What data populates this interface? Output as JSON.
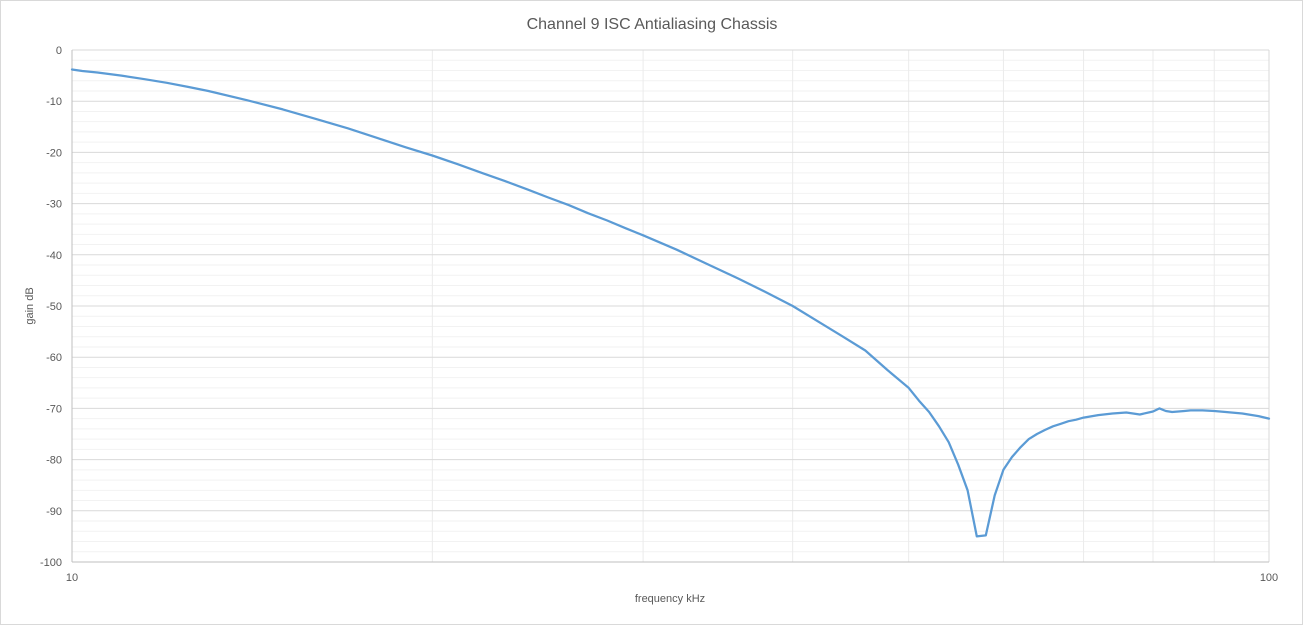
{
  "chart_data": {
    "type": "line",
    "title": "Channel 9 ISC Antialiasing Chassis",
    "xlabel": "frequency kHz",
    "ylabel": "gain dB",
    "x_scale": "log",
    "xlim": [
      10,
      100
    ],
    "ylim": [
      -100,
      0
    ],
    "x_major_ticks": [
      10,
      100
    ],
    "y_major_ticks": [
      0,
      -10,
      -20,
      -30,
      -40,
      -50,
      -60,
      -70,
      -80,
      -90,
      -100
    ],
    "grid": true,
    "legend": "none",
    "series": [
      {
        "color": "#5B9BD5",
        "x": [
          10,
          10.2,
          10.5,
          11,
          11.5,
          12,
          12.5,
          13,
          14,
          15,
          16,
          17,
          18,
          19,
          20,
          21,
          22,
          23,
          24,
          25,
          26,
          27,
          28,
          29,
          30,
          32,
          34,
          36,
          38,
          40,
          42,
          44,
          46,
          48,
          50,
          51,
          52,
          53,
          54,
          55,
          56,
          57,
          58,
          59,
          60,
          61,
          62,
          63,
          64,
          65,
          66,
          67,
          68,
          69,
          70,
          72,
          74,
          76,
          78,
          80,
          81,
          82,
          83,
          84,
          85,
          86,
          88,
          90,
          92,
          95,
          98,
          100
        ],
        "y": [
          -3.8,
          -4.1,
          -4.4,
          -5.0,
          -5.7,
          -6.4,
          -7.2,
          -8.0,
          -9.8,
          -11.6,
          -13.5,
          -15.3,
          -17.2,
          -19.0,
          -20.6,
          -22.3,
          -24.0,
          -25.6,
          -27.2,
          -28.8,
          -30.3,
          -31.9,
          -33.3,
          -34.8,
          -36.2,
          -39.0,
          -41.9,
          -44.6,
          -47.3,
          -50.0,
          -53.0,
          -55.9,
          -58.7,
          -62.5,
          -66.0,
          -68.5,
          -70.7,
          -73.5,
          -76.6,
          -81.0,
          -86.0,
          -95.0,
          -94.8,
          -87.0,
          -82.0,
          -79.5,
          -77.6,
          -76.0,
          -75.0,
          -74.2,
          -73.5,
          -73.0,
          -72.5,
          -72.2,
          -71.8,
          -71.3,
          -71.0,
          -70.8,
          -71.2,
          -70.6,
          -70.0,
          -70.5,
          -70.7,
          -70.6,
          -70.5,
          -70.4,
          -70.4,
          -70.5,
          -70.7,
          -71.0,
          -71.5,
          -72.0
        ]
      }
    ]
  }
}
